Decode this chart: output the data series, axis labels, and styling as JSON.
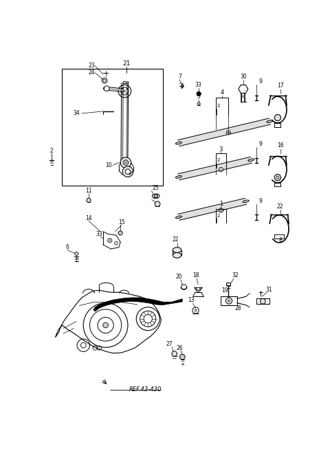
{
  "bg_color": "#ffffff",
  "line_color": "#000000",
  "ref_text": "REF.43-430",
  "figsize": [
    4.8,
    6.56
  ],
  "dpi": 100
}
